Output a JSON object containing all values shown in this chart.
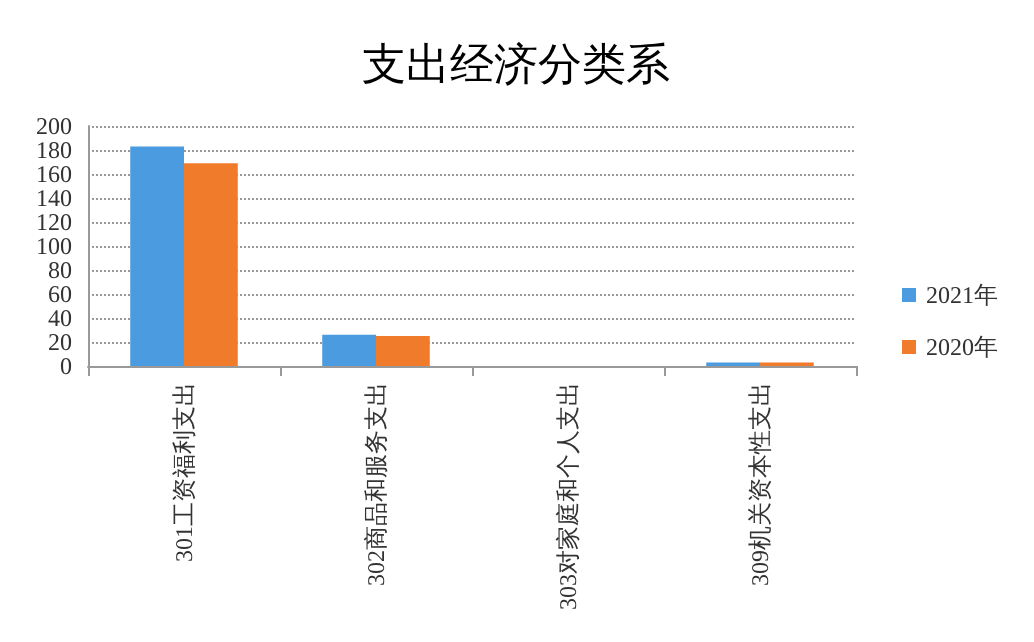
{
  "chart_data": {
    "type": "bar",
    "title": "支出经济分类系",
    "categories": [
      "301工资福利支出",
      "302商品和服务支出",
      "303对家庭和个人支出",
      "309机关资本性支出"
    ],
    "series": [
      {
        "name": "2021年",
        "color": "#4a9be0",
        "values": [
          183,
          26,
          0,
          3
        ]
      },
      {
        "name": "2020年",
        "color": "#f07b2a",
        "values": [
          169,
          25,
          0,
          3
        ]
      }
    ],
    "ylim": [
      0,
      200
    ],
    "yticks": [
      0,
      20,
      40,
      60,
      80,
      100,
      120,
      140,
      160,
      180,
      200
    ],
    "grid": "y",
    "legend": "right"
  }
}
